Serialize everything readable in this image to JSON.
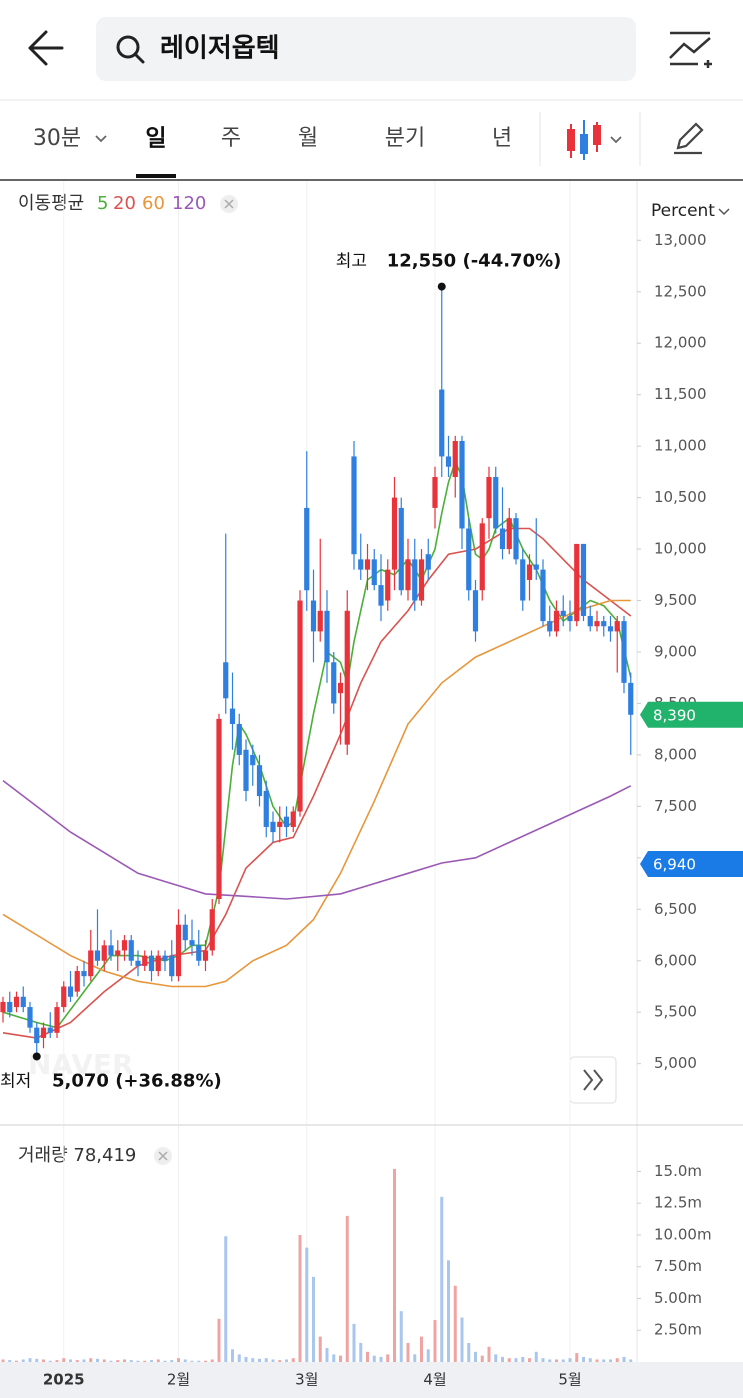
{
  "header": {
    "search": "레이저옵텍"
  },
  "tabs": [
    "30분",
    "일",
    "주",
    "월",
    "분기",
    "년"
  ],
  "ma_label": "이동평균",
  "scale_mode": "Percent",
  "watermark": "NAVER",
  "volume_label": "거래량 78,419",
  "chart_data": {
    "type": "candlestick",
    "categories": [
      null,
      null,
      null,
      null,
      null,
      null,
      null,
      null,
      null,
      "2025",
      null,
      null,
      null,
      null,
      null,
      null,
      null,
      null,
      null,
      null,
      null,
      null,
      null,
      null,
      null,
      null,
      "2월",
      null,
      null,
      null,
      null,
      null,
      null,
      null,
      null,
      null,
      null,
      null,
      null,
      null,
      null,
      null,
      null,
      null,
      null,
      "3월",
      null,
      null,
      null,
      null,
      null,
      null,
      null,
      null,
      null,
      null,
      null,
      null,
      null,
      null,
      null,
      null,
      null,
      null,
      "4월",
      null,
      null,
      null,
      null,
      null,
      null,
      null,
      null,
      null,
      null,
      null,
      null,
      null,
      null,
      null,
      null,
      null,
      null,
      null,
      "5월",
      null,
      null,
      null,
      null,
      null,
      null,
      null,
      null,
      null
    ],
    "up_color": "#e8333b",
    "down_color": "#2f7fe0",
    "candles": [
      [
        5500,
        5650,
        5400,
        5600
      ],
      [
        5600,
        5700,
        5450,
        5500
      ],
      [
        5550,
        5700,
        5500,
        5650
      ],
      [
        5650,
        5750,
        5500,
        5550
      ],
      [
        5550,
        5600,
        5300,
        5350
      ],
      [
        5350,
        5400,
        5070,
        5200
      ],
      [
        5250,
        5400,
        5150,
        5350
      ],
      [
        5350,
        5500,
        5250,
        5300
      ],
      [
        5300,
        5600,
        5250,
        5550
      ],
      [
        5550,
        5800,
        5500,
        5750
      ],
      [
        5750,
        5900,
        5600,
        5650
      ],
      [
        5700,
        5950,
        5650,
        5900
      ],
      [
        5900,
        6000,
        5750,
        5850
      ],
      [
        5850,
        6300,
        5800,
        6100
      ],
      [
        6100,
        6500,
        5950,
        6000
      ],
      [
        6000,
        6200,
        5900,
        6150
      ],
      [
        6150,
        6300,
        6000,
        6050
      ],
      [
        6050,
        6200,
        5900,
        6100
      ],
      [
        6100,
        6250,
        6000,
        6200
      ],
      [
        6200,
        6250,
        5950,
        6000
      ],
      [
        6000,
        6100,
        5850,
        5950
      ],
      [
        5950,
        6100,
        5900,
        6050
      ],
      [
        6050,
        6100,
        5800,
        5900
      ],
      [
        5900,
        6100,
        5850,
        6050
      ],
      [
        6050,
        6100,
        5900,
        6000
      ],
      [
        6050,
        6200,
        5800,
        5850
      ],
      [
        5850,
        6500,
        5800,
        6350
      ],
      [
        6350,
        6450,
        6100,
        6200
      ],
      [
        6200,
        6400,
        6050,
        6150
      ],
      [
        6150,
        6300,
        5950,
        6000
      ],
      [
        6000,
        6200,
        5900,
        6100
      ],
      [
        6100,
        6600,
        6050,
        6500
      ],
      [
        6600,
        8400,
        6550,
        8350
      ],
      [
        8900,
        10150,
        8400,
        8550
      ],
      [
        8450,
        8800,
        8050,
        8300
      ],
      [
        8300,
        8400,
        7900,
        8000
      ],
      [
        8050,
        8150,
        7550,
        7650
      ],
      [
        8000,
        8100,
        7700,
        7900
      ],
      [
        7900,
        8000,
        7500,
        7600
      ],
      [
        7650,
        7750,
        7200,
        7300
      ],
      [
        7350,
        7450,
        7150,
        7250
      ],
      [
        7300,
        7500,
        7150,
        7350
      ],
      [
        7400,
        7500,
        7200,
        7300
      ],
      [
        7300,
        7500,
        7250,
        7450
      ],
      [
        7450,
        9600,
        7400,
        9500
      ],
      [
        10400,
        10950,
        9400,
        9600
      ],
      [
        9500,
        9800,
        8900,
        9200
      ],
      [
        9200,
        10100,
        9100,
        9400
      ],
      [
        9400,
        9600,
        8700,
        8900
      ],
      [
        8900,
        9000,
        8400,
        8500
      ],
      [
        8600,
        8800,
        8100,
        8700
      ],
      [
        8100,
        9600,
        8000,
        9400
      ],
      [
        10900,
        11050,
        9800,
        9950
      ],
      [
        9900,
        10150,
        9700,
        9800
      ],
      [
        9800,
        10050,
        9600,
        9900
      ],
      [
        9900,
        10000,
        9600,
        9650
      ],
      [
        9650,
        9950,
        9300,
        9450
      ],
      [
        9500,
        9900,
        9400,
        9800
      ],
      [
        9800,
        10700,
        9600,
        10500
      ],
      [
        10400,
        10500,
        9550,
        9600
      ],
      [
        9600,
        10100,
        9500,
        9900
      ],
      [
        9900,
        10100,
        9400,
        9500
      ],
      [
        9500,
        10000,
        9450,
        9900
      ],
      [
        9950,
        10100,
        9700,
        9800
      ],
      [
        10400,
        10800,
        10200,
        10700
      ],
      [
        11550,
        12550,
        10700,
        10900
      ],
      [
        10900,
        11100,
        10700,
        10800
      ],
      [
        10700,
        11100,
        10500,
        11050
      ],
      [
        11050,
        11100,
        10000,
        10200
      ],
      [
        10200,
        10300,
        9500,
        9600
      ],
      [
        9600,
        9700,
        9100,
        9200
      ],
      [
        9600,
        10300,
        9500,
        10250
      ],
      [
        10300,
        10800,
        10100,
        10700
      ],
      [
        10700,
        10800,
        10150,
        10200
      ],
      [
        10200,
        10600,
        9900,
        10000
      ],
      [
        10000,
        10400,
        9950,
        10300
      ],
      [
        10300,
        10350,
        9850,
        9900
      ],
      [
        9900,
        10000,
        9400,
        9500
      ],
      [
        9700,
        9950,
        9500,
        9850
      ],
      [
        9850,
        10300,
        9700,
        9800
      ],
      [
        9800,
        9900,
        9250,
        9300
      ],
      [
        9300,
        9450,
        9150,
        9200
      ],
      [
        9200,
        9500,
        9150,
        9400
      ],
      [
        9400,
        9550,
        9250,
        9350
      ],
      [
        9350,
        9500,
        9200,
        9300
      ],
      [
        9300,
        10050,
        9250,
        10050
      ],
      [
        10050,
        10050,
        9300,
        9350
      ],
      [
        9350,
        9450,
        9200,
        9250
      ],
      [
        9250,
        9400,
        9200,
        9300
      ],
      [
        9300,
        9350,
        9150,
        9250
      ],
      [
        9250,
        9350,
        9100,
        9200
      ],
      [
        9200,
        9350,
        8800,
        9300
      ],
      [
        9300,
        9350,
        8600,
        8700
      ],
      [
        8700,
        8800,
        8000,
        8390
      ]
    ],
    "ylim": [
      4550,
      13100
    ],
    "yticks": [
      {
        "value": 5000,
        "label": "5,000"
      },
      {
        "value": 5500,
        "label": "5,500"
      },
      {
        "value": 6000,
        "label": "6,000"
      },
      {
        "value": 6500,
        "label": "6,500"
      },
      {
        "value": 7000,
        "label": "7,000"
      },
      {
        "value": 7500,
        "label": "7,500"
      },
      {
        "value": 8000,
        "label": "8,000"
      },
      {
        "value": 8500,
        "label": "8,500"
      },
      {
        "value": 9000,
        "label": "9,000"
      },
      {
        "value": 9500,
        "label": "9,500"
      },
      {
        "value": 10000,
        "label": "10,000"
      },
      {
        "value": 10500,
        "label": "10,500"
      },
      {
        "value": 11000,
        "label": "11,000"
      },
      {
        "value": 11500,
        "label": "11,500"
      },
      {
        "value": 12000,
        "label": "12,000"
      },
      {
        "value": 12500,
        "label": "12,500"
      },
      {
        "value": 13000,
        "label": "13,000"
      }
    ],
    "ma": [
      {
        "name": "5",
        "color": "#4caf3a",
        "x": [
          0,
          5,
          8,
          12,
          16,
          20,
          24,
          26,
          28,
          30,
          32,
          33,
          34,
          35,
          36,
          38,
          40,
          42,
          43,
          44,
          46,
          48,
          50,
          51,
          52,
          54,
          56,
          58,
          60,
          62,
          64,
          65,
          66,
          67,
          68,
          69,
          70,
          71,
          72,
          73,
          75,
          77,
          79,
          81,
          83,
          85,
          87,
          89,
          91,
          93
        ],
        "values": [
          5500,
          5400,
          5350,
          5700,
          6050,
          6050,
          6000,
          6050,
          6150,
          6150,
          6700,
          7300,
          7900,
          8300,
          8200,
          7900,
          7500,
          7300,
          7350,
          7700,
          8400,
          9000,
          8900,
          8700,
          9100,
          9700,
          9800,
          9750,
          9900,
          9700,
          10000,
          10350,
          10650,
          10850,
          10700,
          10300,
          9950,
          9900,
          10000,
          10200,
          10300,
          10000,
          9800,
          9500,
          9300,
          9400,
          9500,
          9450,
          9300,
          8750
        ]
      },
      {
        "name": "20",
        "color": "#d9534f",
        "x": [
          0,
          5,
          10,
          15,
          20,
          25,
          30,
          33,
          36,
          40,
          43,
          46,
          50,
          53,
          56,
          60,
          63,
          66,
          70,
          75,
          78,
          80,
          83,
          86,
          89,
          93
        ],
        "values": [
          5300,
          5250,
          5400,
          5700,
          5950,
          6050,
          6100,
          6450,
          6900,
          7150,
          7200,
          7600,
          8200,
          8700,
          9100,
          9400,
          9700,
          9950,
          10000,
          10200,
          10200,
          10100,
          9900,
          9700,
          9550,
          9350
        ]
      },
      {
        "name": "60",
        "color": "#e8963a",
        "x": [
          0,
          5,
          10,
          15,
          20,
          25,
          30,
          33,
          37,
          42,
          46,
          50,
          55,
          60,
          65,
          70,
          75,
          80,
          85,
          90,
          93
        ],
        "values": [
          6450,
          6250,
          6050,
          5900,
          5800,
          5750,
          5750,
          5800,
          6000,
          6150,
          6400,
          6850,
          7550,
          8300,
          8700,
          8950,
          9100,
          9250,
          9400,
          9500,
          9500
        ]
      },
      {
        "name": "120",
        "color": "#9b59b6",
        "x": [
          0,
          5,
          10,
          15,
          20,
          25,
          30,
          35,
          42,
          50,
          55,
          60,
          65,
          70,
          75,
          80,
          85,
          90,
          93
        ],
        "values": [
          7750,
          7500,
          7250,
          7050,
          6850,
          6750,
          6650,
          6630,
          6600,
          6650,
          6750,
          6850,
          6950,
          7000,
          7150,
          7300,
          7450,
          7600,
          7700
        ]
      }
    ],
    "annotations": [
      {
        "label": "최고",
        "value": 12550,
        "text": "12,550 (-44.70%)"
      },
      {
        "label": "최저",
        "value": 5070,
        "text": "5,070 (+36.88%)"
      }
    ],
    "price_badges": [
      {
        "value": 8390,
        "label": "8,390",
        "color": "#21b36b"
      },
      {
        "value": 6940,
        "label": "6,940",
        "color": "#1a7ae6"
      }
    ],
    "volume": [
      0.2,
      0.15,
      0.1,
      0.2,
      0.3,
      0.25,
      0.2,
      0.1,
      0.15,
      0.3,
      0.2,
      0.15,
      0.2,
      0.3,
      0.25,
      0.2,
      0.1,
      0.15,
      0.2,
      0.15,
      0.1,
      0.1,
      0.15,
      0.2,
      0.1,
      0.15,
      0.3,
      0.2,
      0.1,
      0.1,
      0.1,
      0.2,
      3.4,
      9.9,
      1.0,
      0.6,
      0.4,
      0.3,
      0.25,
      0.3,
      0.2,
      0.15,
      0.2,
      0.3,
      10.0,
      9.0,
      6.7,
      2.0,
      1.1,
      0.6,
      0.5,
      11.5,
      3.0,
      1.5,
      0.8,
      0.5,
      0.4,
      0.6,
      15.2,
      4.0,
      1.5,
      0.6,
      2.0,
      1.0,
      3.3,
      13.0,
      8.0,
      6.0,
      3.5,
      1.5,
      0.8,
      0.5,
      1.2,
      0.6,
      0.4,
      0.3,
      0.3,
      0.4,
      0.3,
      0.8,
      0.3,
      0.2,
      0.2,
      0.2,
      0.3,
      0.7,
      0.4,
      0.3,
      0.2,
      0.2,
      0.2,
      0.3,
      0.4,
      0.2
    ],
    "vol_up_color": "#f0a3a3",
    "vol_down_color": "#a9c6ef",
    "vlim": [
      0,
      15.9
    ],
    "vticks": [
      {
        "value": 2.5,
        "label": "2.50m"
      },
      {
        "value": 5,
        "label": "5.00m"
      },
      {
        "value": 7.5,
        "label": "7.50m"
      },
      {
        "value": 10,
        "label": "10.00m"
      },
      {
        "value": 12.5,
        "label": "12.5m"
      },
      {
        "value": 15,
        "label": "15.0m"
      }
    ]
  }
}
